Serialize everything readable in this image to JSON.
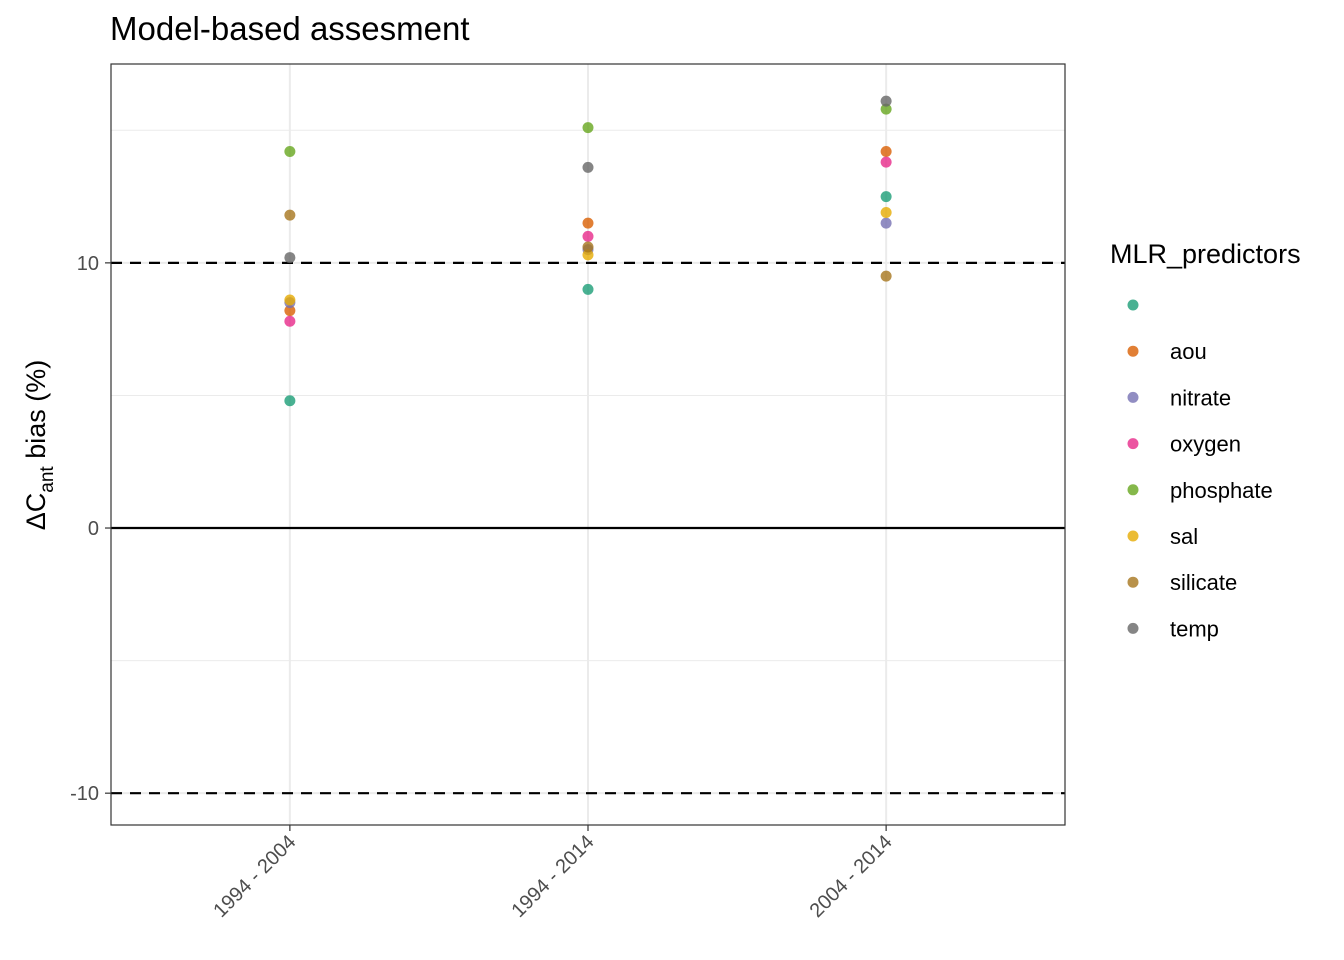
{
  "chart_data": {
    "type": "scatter",
    "title": "Model-based assesment",
    "ylabel": {
      "prefix": "ΔC",
      "subscript": "ant",
      "suffix": " bias (%)"
    },
    "xlabel": "",
    "categories": [
      "1994 - 2004",
      "1994 - 2014",
      "2004 - 2014"
    ],
    "ylim": [
      -11.2,
      17.5
    ],
    "yticks": [
      -10,
      0,
      10
    ],
    "reference_lines": {
      "dashed": [
        -10,
        10
      ],
      "solid": [
        0
      ]
    },
    "grid": true,
    "legend": {
      "title": "MLR_predictors",
      "position": "right"
    },
    "series": [
      {
        "name": "",
        "color": "#1B9E77",
        "values": [
          4.8,
          9.0,
          12.5
        ]
      },
      {
        "name": "aou",
        "color": "#D95F02",
        "values": [
          8.2,
          11.5,
          14.2
        ]
      },
      {
        "name": "nitrate",
        "color": "#7570B3",
        "values": [
          8.5,
          10.5,
          11.5
        ]
      },
      {
        "name": "oxygen",
        "color": "#E7298A",
        "values": [
          7.8,
          11.0,
          13.8
        ]
      },
      {
        "name": "phosphate",
        "color": "#66A61E",
        "values": [
          14.2,
          15.1,
          15.8
        ]
      },
      {
        "name": "sal",
        "color": "#E6AB02",
        "values": [
          8.6,
          10.3,
          11.9
        ]
      },
      {
        "name": "silicate",
        "color": "#A6761D",
        "values": [
          11.8,
          10.6,
          9.5
        ]
      },
      {
        "name": "temp",
        "color": "#666666",
        "values": [
          10.2,
          13.6,
          16.1
        ]
      }
    ]
  }
}
